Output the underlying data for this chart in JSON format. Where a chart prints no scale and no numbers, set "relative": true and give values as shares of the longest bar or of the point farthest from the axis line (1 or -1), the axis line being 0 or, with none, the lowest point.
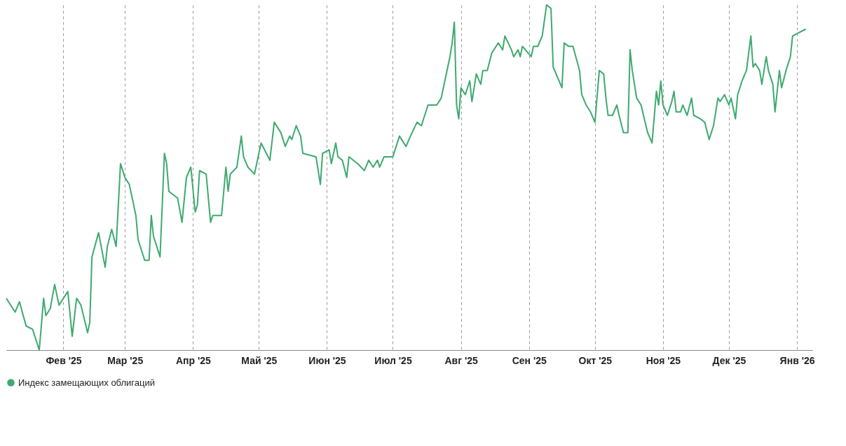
{
  "chart_data": {
    "type": "line",
    "relative": true,
    "grid": "x",
    "legend": "bottom",
    "marker": "none",
    "line_style": "solid",
    "xlim": [
      "2025-01-06",
      "2026-01-08"
    ],
    "xticks": [
      {
        "value": "2025-02-01",
        "label": "Фев '25"
      },
      {
        "value": "2025-03-01",
        "label": "Мар '25"
      },
      {
        "value": "2025-04-01",
        "label": "Апр '25"
      },
      {
        "value": "2025-05-01",
        "label": "Май '25"
      },
      {
        "value": "2025-06-01",
        "label": "Июн '25"
      },
      {
        "value": "2025-07-01",
        "label": "Июл '25"
      },
      {
        "value": "2025-08-01",
        "label": "Авг '25"
      },
      {
        "value": "2025-09-01",
        "label": "Сен '25"
      },
      {
        "value": "2025-10-01",
        "label": "Окт '25"
      },
      {
        "value": "2025-11-01",
        "label": "Ноя '25"
      },
      {
        "value": "2025-12-01",
        "label": "Дек '25"
      },
      {
        "value": "2026-01-01",
        "label": "Янв '26"
      }
    ],
    "x": [
      "2025-01-06",
      "2025-01-10",
      "2025-01-12",
      "2025-01-15",
      "2025-01-18",
      "2025-01-21",
      "2025-01-23",
      "2025-01-24",
      "2025-01-26",
      "2025-01-28",
      "2025-01-30",
      "2025-02-01",
      "2025-02-03",
      "2025-02-05",
      "2025-02-07",
      "2025-02-09",
      "2025-02-12",
      "2025-02-13",
      "2025-02-14",
      "2025-02-17",
      "2025-02-20",
      "2025-02-21",
      "2025-02-23",
      "2025-02-25",
      "2025-02-27",
      "2025-03-01",
      "2025-03-03",
      "2025-03-06",
      "2025-03-07",
      "2025-03-10",
      "2025-03-12",
      "2025-03-13",
      "2025-03-14",
      "2025-03-17",
      "2025-03-19",
      "2025-03-20",
      "2025-03-21",
      "2025-03-25",
      "2025-03-27",
      "2025-03-29",
      "2025-03-31",
      "2025-04-02",
      "2025-04-03",
      "2025-04-04",
      "2025-04-07",
      "2025-04-09",
      "2025-04-10",
      "2025-04-14",
      "2025-04-16",
      "2025-04-17",
      "2025-04-18",
      "2025-04-21",
      "2025-04-23",
      "2025-04-24",
      "2025-04-26",
      "2025-04-29",
      "2025-05-02",
      "2025-05-06",
      "2025-05-08",
      "2025-05-11",
      "2025-05-13",
      "2025-05-15",
      "2025-05-16",
      "2025-05-18",
      "2025-05-20",
      "2025-05-21",
      "2025-05-27",
      "2025-05-29",
      "2025-05-30",
      "2025-06-02",
      "2025-06-03",
      "2025-06-05",
      "2025-06-06",
      "2025-06-08",
      "2025-06-10",
      "2025-06-11",
      "2025-06-15",
      "2025-06-18",
      "2025-06-20",
      "2025-06-22",
      "2025-06-24",
      "2025-06-25",
      "2025-06-27",
      "2025-07-01",
      "2025-07-04",
      "2025-07-07",
      "2025-07-09",
      "2025-07-12",
      "2025-07-14",
      "2025-07-17",
      "2025-07-20",
      "2025-07-21",
      "2025-07-23",
      "2025-07-25",
      "2025-07-27",
      "2025-07-28",
      "2025-07-29",
      "2025-07-30",
      "2025-07-31",
      "2025-08-01",
      "2025-08-03",
      "2025-08-05",
      "2025-08-06",
      "2025-08-08",
      "2025-08-10",
      "2025-08-11",
      "2025-08-13",
      "2025-08-15",
      "2025-08-18",
      "2025-08-20",
      "2025-08-21",
      "2025-08-24",
      "2025-08-25",
      "2025-08-27",
      "2025-08-28",
      "2025-08-29",
      "2025-09-02",
      "2025-09-03",
      "2025-09-05",
      "2025-09-07",
      "2025-09-09",
      "2025-09-11",
      "2025-09-12",
      "2025-09-16",
      "2025-09-17",
      "2025-09-19",
      "2025-09-21",
      "2025-09-24",
      "2025-09-25",
      "2025-09-27",
      "2025-09-29",
      "2025-10-01",
      "2025-10-03",
      "2025-10-05",
      "2025-10-06",
      "2025-10-07",
      "2025-10-09",
      "2025-10-11",
      "2025-10-12",
      "2025-10-14",
      "2025-10-16",
      "2025-10-17",
      "2025-10-18",
      "2025-10-20",
      "2025-10-22",
      "2025-10-25",
      "2025-10-27",
      "2025-10-29",
      "2025-10-30",
      "2025-10-31",
      "2025-11-01",
      "2025-11-03",
      "2025-11-05",
      "2025-11-06",
      "2025-11-07",
      "2025-11-09",
      "2025-11-10",
      "2025-11-12",
      "2025-11-14",
      "2025-11-15",
      "2025-11-18",
      "2025-11-20",
      "2025-11-22",
      "2025-11-24",
      "2025-11-26",
      "2025-11-27",
      "2025-11-29",
      "2025-12-01",
      "2025-12-02",
      "2025-12-04",
      "2025-12-05",
      "2025-12-07",
      "2025-12-09",
      "2025-12-11",
      "2025-12-12",
      "2025-12-13",
      "2025-12-15",
      "2025-12-16",
      "2025-12-18",
      "2025-12-19",
      "2025-12-21",
      "2025-12-22",
      "2025-12-24",
      "2025-12-25",
      "2025-12-27",
      "2025-12-29",
      "2025-12-30",
      "2026-01-05"
    ],
    "series": [
      {
        "name": "Индекс замещающих облигаций",
        "color": "#3daa6e",
        "values": [
          0.15,
          0.11,
          0.14,
          0.07,
          0.06,
          0.0,
          0.15,
          0.1,
          0.12,
          0.19,
          0.13,
          0.15,
          0.17,
          0.04,
          0.15,
          0.13,
          0.05,
          0.08,
          0.27,
          0.34,
          0.24,
          0.3,
          0.35,
          0.3,
          0.54,
          0.5,
          0.48,
          0.39,
          0.32,
          0.26,
          0.26,
          0.39,
          0.33,
          0.27,
          0.57,
          0.54,
          0.46,
          0.44,
          0.37,
          0.5,
          0.53,
          0.4,
          0.42,
          0.52,
          0.51,
          0.37,
          0.39,
          0.39,
          0.53,
          0.46,
          0.51,
          0.53,
          0.62,
          0.56,
          0.53,
          0.51,
          0.6,
          0.55,
          0.66,
          0.63,
          0.59,
          0.62,
          0.61,
          0.65,
          0.62,
          0.57,
          0.56,
          0.48,
          0.57,
          0.58,
          0.54,
          0.6,
          0.56,
          0.55,
          0.5,
          0.56,
          0.54,
          0.52,
          0.55,
          0.53,
          0.55,
          0.53,
          0.56,
          0.56,
          0.62,
          0.59,
          0.62,
          0.66,
          0.65,
          0.71,
          0.71,
          0.71,
          0.73,
          0.79,
          0.85,
          0.89,
          0.95,
          0.71,
          0.67,
          0.76,
          0.74,
          0.78,
          0.72,
          0.8,
          0.77,
          0.81,
          0.81,
          0.86,
          0.89,
          0.87,
          0.91,
          0.87,
          0.85,
          0.87,
          0.85,
          0.88,
          0.85,
          0.88,
          0.88,
          0.91,
          1.0,
          0.99,
          0.82,
          0.76,
          0.89,
          0.88,
          0.88,
          0.81,
          0.74,
          0.71,
          0.69,
          0.66,
          0.81,
          0.8,
          0.73,
          0.68,
          0.68,
          0.71,
          0.68,
          0.63,
          0.63,
          0.87,
          0.81,
          0.73,
          0.71,
          0.63,
          0.6,
          0.75,
          0.71,
          0.78,
          0.71,
          0.68,
          0.72,
          0.75,
          0.69,
          0.69,
          0.71,
          0.68,
          0.73,
          0.68,
          0.67,
          0.66,
          0.61,
          0.65,
          0.73,
          0.72,
          0.74,
          0.71,
          0.73,
          0.67,
          0.74,
          0.78,
          0.81,
          0.91,
          0.82,
          0.83,
          0.81,
          0.77,
          0.85,
          0.81,
          0.77,
          0.69,
          0.81,
          0.76,
          0.81,
          0.85,
          0.91,
          0.93
        ]
      }
    ]
  }
}
